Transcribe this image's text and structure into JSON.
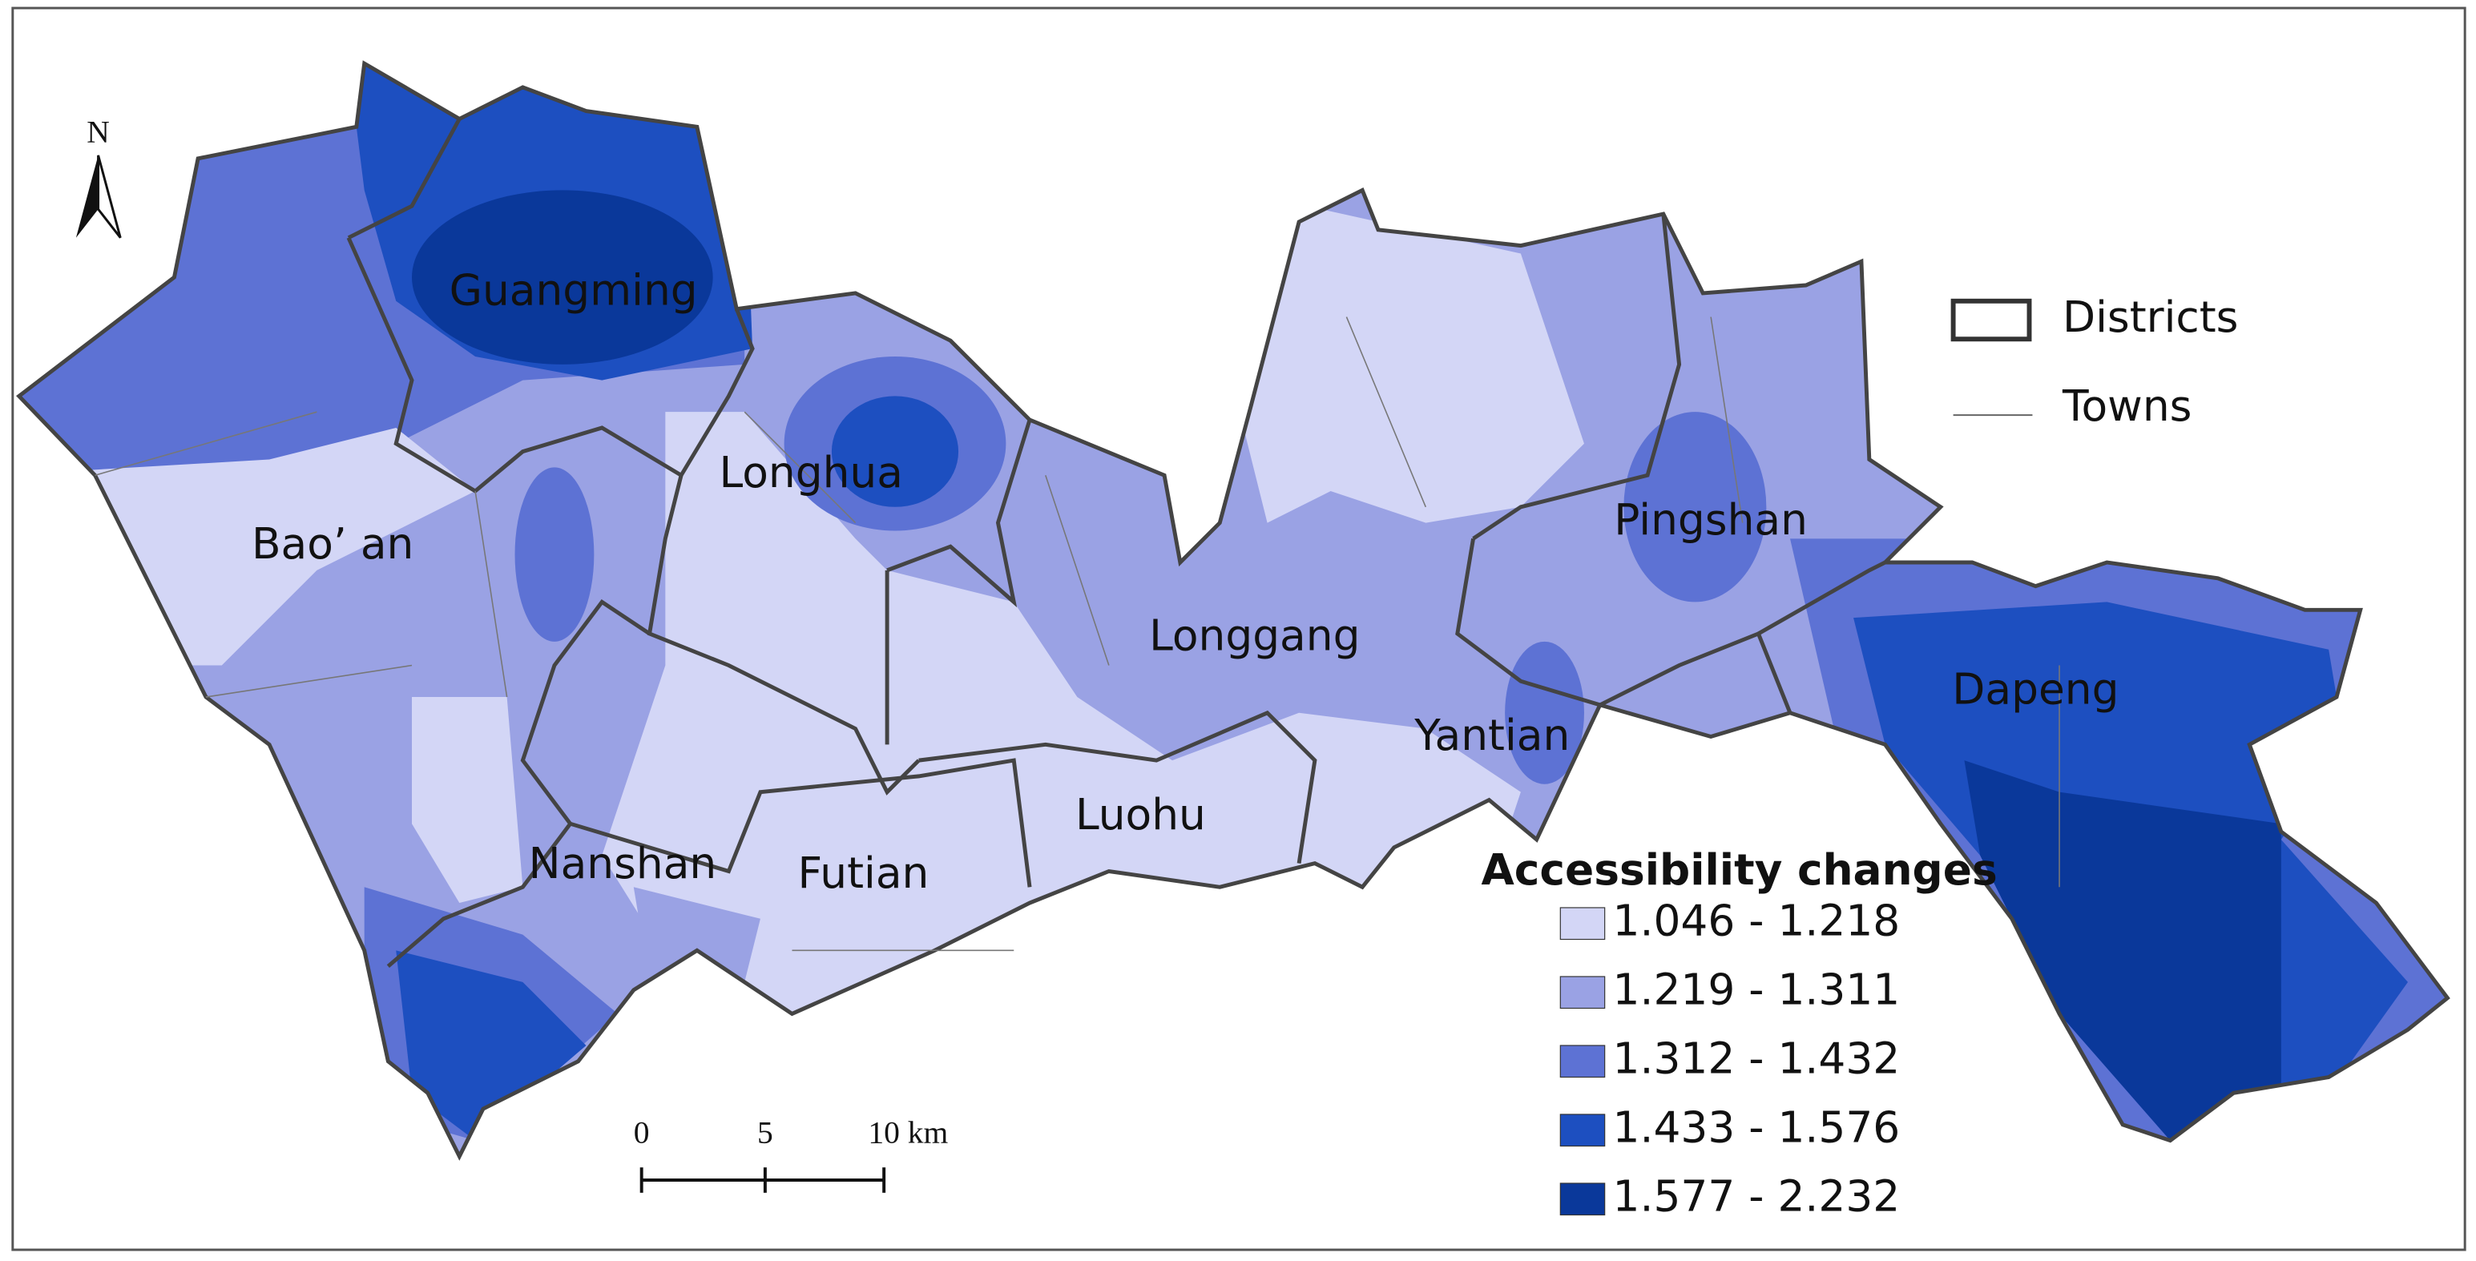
{
  "north_arrow": {
    "label": "N"
  },
  "districts": [
    {
      "label": "Guangming"
    },
    {
      "label": "Bao’ an"
    },
    {
      "label": "Longhua"
    },
    {
      "label": "Nanshan"
    },
    {
      "label": "Futian"
    },
    {
      "label": "Luohu"
    },
    {
      "label": "Longgang"
    },
    {
      "label": "Yantian"
    },
    {
      "label": "Pingshan"
    },
    {
      "label": "Dapeng"
    }
  ],
  "boundary_legend": [
    {
      "label": "Districts"
    },
    {
      "label": "Towns"
    }
  ],
  "legend": {
    "title": "Accessibility changes",
    "classes": [
      {
        "label": "1.046 - 1.218",
        "color": "#d3d6f6"
      },
      {
        "label": "1.219 - 1.311",
        "color": "#9aa2e4"
      },
      {
        "label": "1.312 - 1.432",
        "color": "#5d72d4"
      },
      {
        "label": "1.433 - 1.576",
        "color": "#1d4fc0"
      },
      {
        "label": "1.577 - 2.232",
        "color": "#0a389a"
      }
    ]
  },
  "scale_bar": {
    "ticks": [
      "0",
      "5",
      "10 km"
    ]
  }
}
